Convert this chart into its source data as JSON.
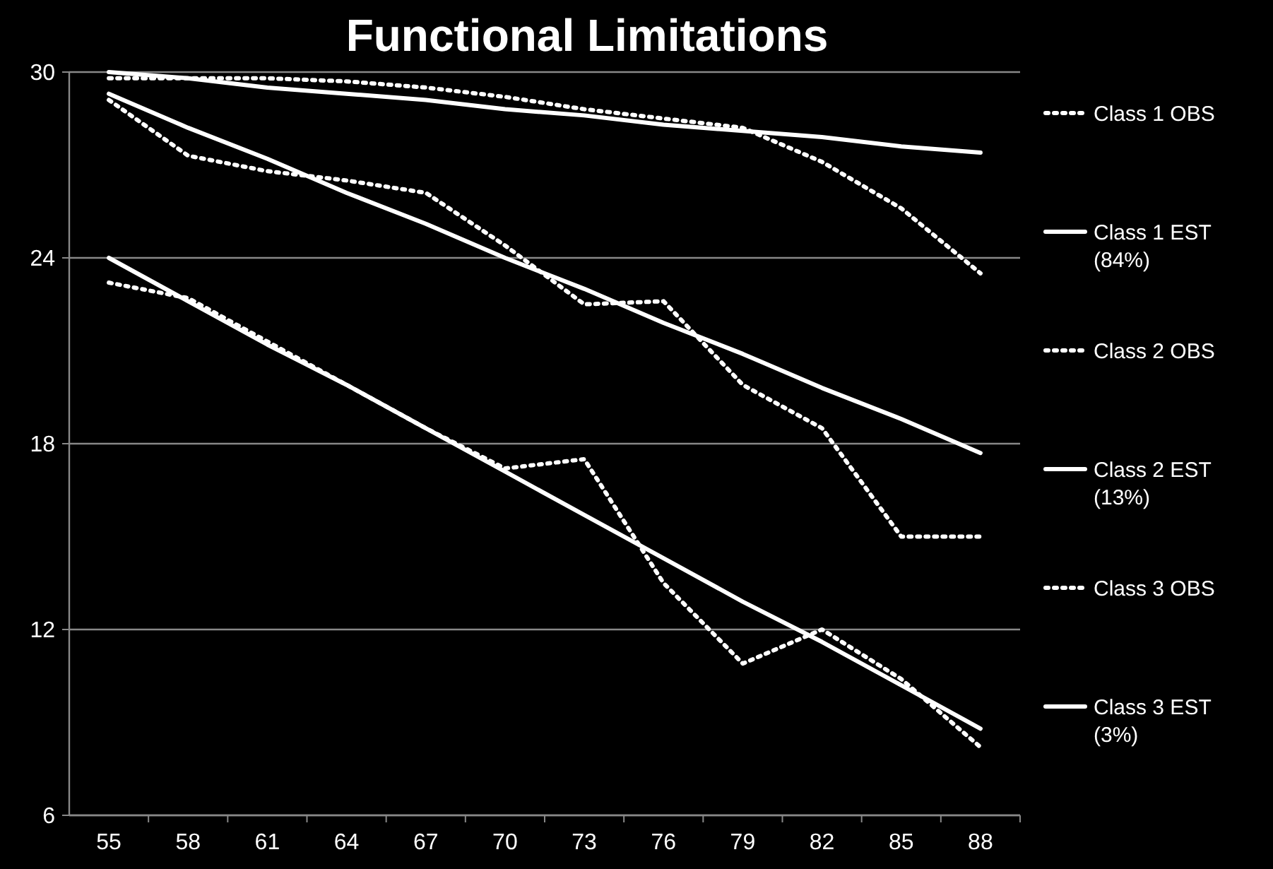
{
  "chart_data": {
    "type": "line",
    "title": "Functional Limitations",
    "categories": [
      "55",
      "58",
      "61",
      "64",
      "67",
      "70",
      "73",
      "76",
      "79",
      "82",
      "85",
      "88"
    ],
    "ylim": [
      6,
      30
    ],
    "yticks": [
      6,
      12,
      18,
      24,
      30
    ],
    "grid": "y",
    "legend": "right",
    "marker": "none",
    "series": [
      {
        "name": "Class 1 OBS",
        "color": "#ffffff",
        "line_style": "dotted",
        "values": [
          29.8,
          29.8,
          29.8,
          29.7,
          29.5,
          29.2,
          28.8,
          28.5,
          28.2,
          27.1,
          25.6,
          23.5
        ]
      },
      {
        "name": "Class 1 EST (84%)",
        "color": "#ffffff",
        "line_style": "solid",
        "values": [
          30.0,
          29.8,
          29.5,
          29.3,
          29.1,
          28.8,
          28.6,
          28.3,
          28.1,
          27.9,
          27.6,
          27.4
        ]
      },
      {
        "name": "Class 2 OBS",
        "color": "#ffffff",
        "line_style": "dotted",
        "values": [
          29.1,
          27.3,
          26.8,
          26.5,
          26.1,
          24.4,
          22.5,
          22.6,
          19.9,
          18.5,
          15.0,
          15.0
        ]
      },
      {
        "name": "Class 2 EST (13%)",
        "color": "#ffffff",
        "line_style": "solid",
        "values": [
          29.3,
          28.2,
          27.2,
          26.1,
          25.1,
          24.0,
          23.0,
          21.9,
          20.9,
          19.8,
          18.8,
          17.7
        ]
      },
      {
        "name": "Class 3 OBS",
        "color": "#ffffff",
        "line_style": "dotted",
        "values": [
          23.2,
          22.7,
          21.3,
          19.9,
          18.5,
          17.2,
          17.5,
          13.5,
          10.9,
          12.0,
          10.4,
          8.2
        ]
      },
      {
        "name": "Class 3 EST (3%)",
        "color": "#ffffff",
        "line_style": "solid",
        "values": [
          24.0,
          22.6,
          21.2,
          19.9,
          18.5,
          17.1,
          15.7,
          14.3,
          12.9,
          11.6,
          10.2,
          8.8
        ]
      }
    ]
  }
}
